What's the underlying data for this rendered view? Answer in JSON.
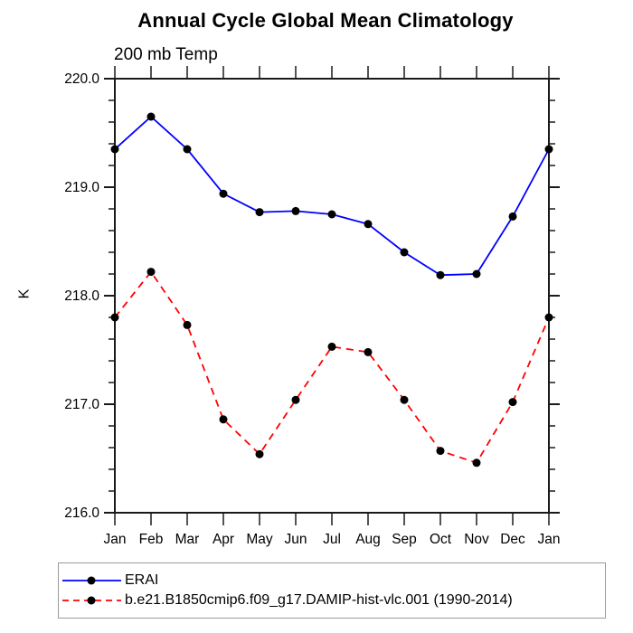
{
  "figure": {
    "background": "#ffffff",
    "axis_color": "#1a1a1a",
    "text_color": "#000000"
  },
  "chart_data": {
    "type": "line",
    "title": "Annual Cycle Global Mean Climatology",
    "subtitle": "200 mb Temp",
    "ylabel": "K",
    "xlabel": "",
    "categories": [
      "Jan",
      "Feb",
      "Mar",
      "Apr",
      "May",
      "Jun",
      "Jul",
      "Aug",
      "Sep",
      "Oct",
      "Nov",
      "Dec",
      "Jan"
    ],
    "ylim": [
      216.0,
      220.0
    ],
    "ytick_values": [
      216.0,
      217.0,
      218.0,
      219.0,
      220.0
    ],
    "ytick_labels": [
      "216.0",
      "217.0",
      "218.0",
      "219.0",
      "220.0"
    ],
    "minor_tick_interval": 0.2,
    "grid": false,
    "legend_position": "bottom",
    "series": [
      {
        "name": "ERAI",
        "color": "#0000ff",
        "line_style": "solid",
        "marker": "filled-circle",
        "marker_color": "#000000",
        "values": [
          219.35,
          219.65,
          219.35,
          218.94,
          218.77,
          218.78,
          218.75,
          218.66,
          218.4,
          218.19,
          218.2,
          218.73,
          219.35
        ]
      },
      {
        "name": "b.e21.B1850cmip6.f09_g17.DAMIP-hist-vlc.001 (1990-2014)",
        "color": "#ff0000",
        "line_style": "dashed",
        "marker": "filled-circle",
        "marker_color": "#000000",
        "values": [
          217.8,
          218.22,
          217.73,
          216.86,
          216.54,
          217.04,
          217.53,
          217.48,
          217.04,
          216.57,
          216.46,
          217.02,
          217.8
        ]
      }
    ]
  }
}
